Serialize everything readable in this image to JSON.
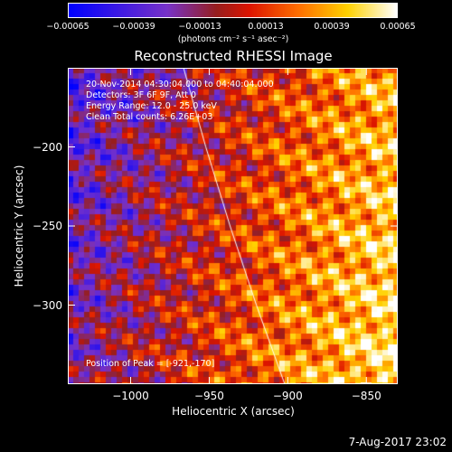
{
  "chart_data": {
    "type": "heatmap",
    "title": "Reconstructed RHESSI Image",
    "xlabel": "Heliocentric X (arcsec)",
    "ylabel": "Heliocentric Y (arcsec)",
    "xlim": [
      -1040,
      -830
    ],
    "ylim": [
      -350,
      -150
    ],
    "x_ticks": [
      -1000,
      -950,
      -900,
      -850
    ],
    "x_tick_labels": [
      "−1000",
      "−950",
      "−900",
      "−850"
    ],
    "y_ticks": [
      -200,
      -250,
      -300
    ],
    "y_tick_labels": [
      "−200",
      "−250",
      "−300"
    ],
    "colorbar": {
      "range": [
        -0.00065,
        0.00065
      ],
      "ticks": [
        -0.00065,
        -0.00039,
        -0.00013,
        0.00013,
        0.00039,
        0.00065
      ],
      "tick_labels": [
        "−0.00065",
        "−0.00039",
        "−0.00013",
        "0.00013",
        "0.00039",
        "0.00065"
      ],
      "unit": "(photons cm⁻² s⁻¹ asec⁻²)",
      "colormap": "blue-purple-red-orange-yellow-white"
    },
    "annotations": [
      "20-Nov-2014 04:30:04.000 to 04:40:04.000",
      "Detectors: 3F 6F 9F, Att 0",
      "Energy Range: 12.0 - 25.0 keV",
      "Clean    Total counts: 6.26E+03"
    ],
    "peak_label": "Position of Peak = [-921,-170]",
    "limb_line_color": "#ffffff"
  },
  "footer": {
    "date": "7-Aug-2017 23:02"
  }
}
